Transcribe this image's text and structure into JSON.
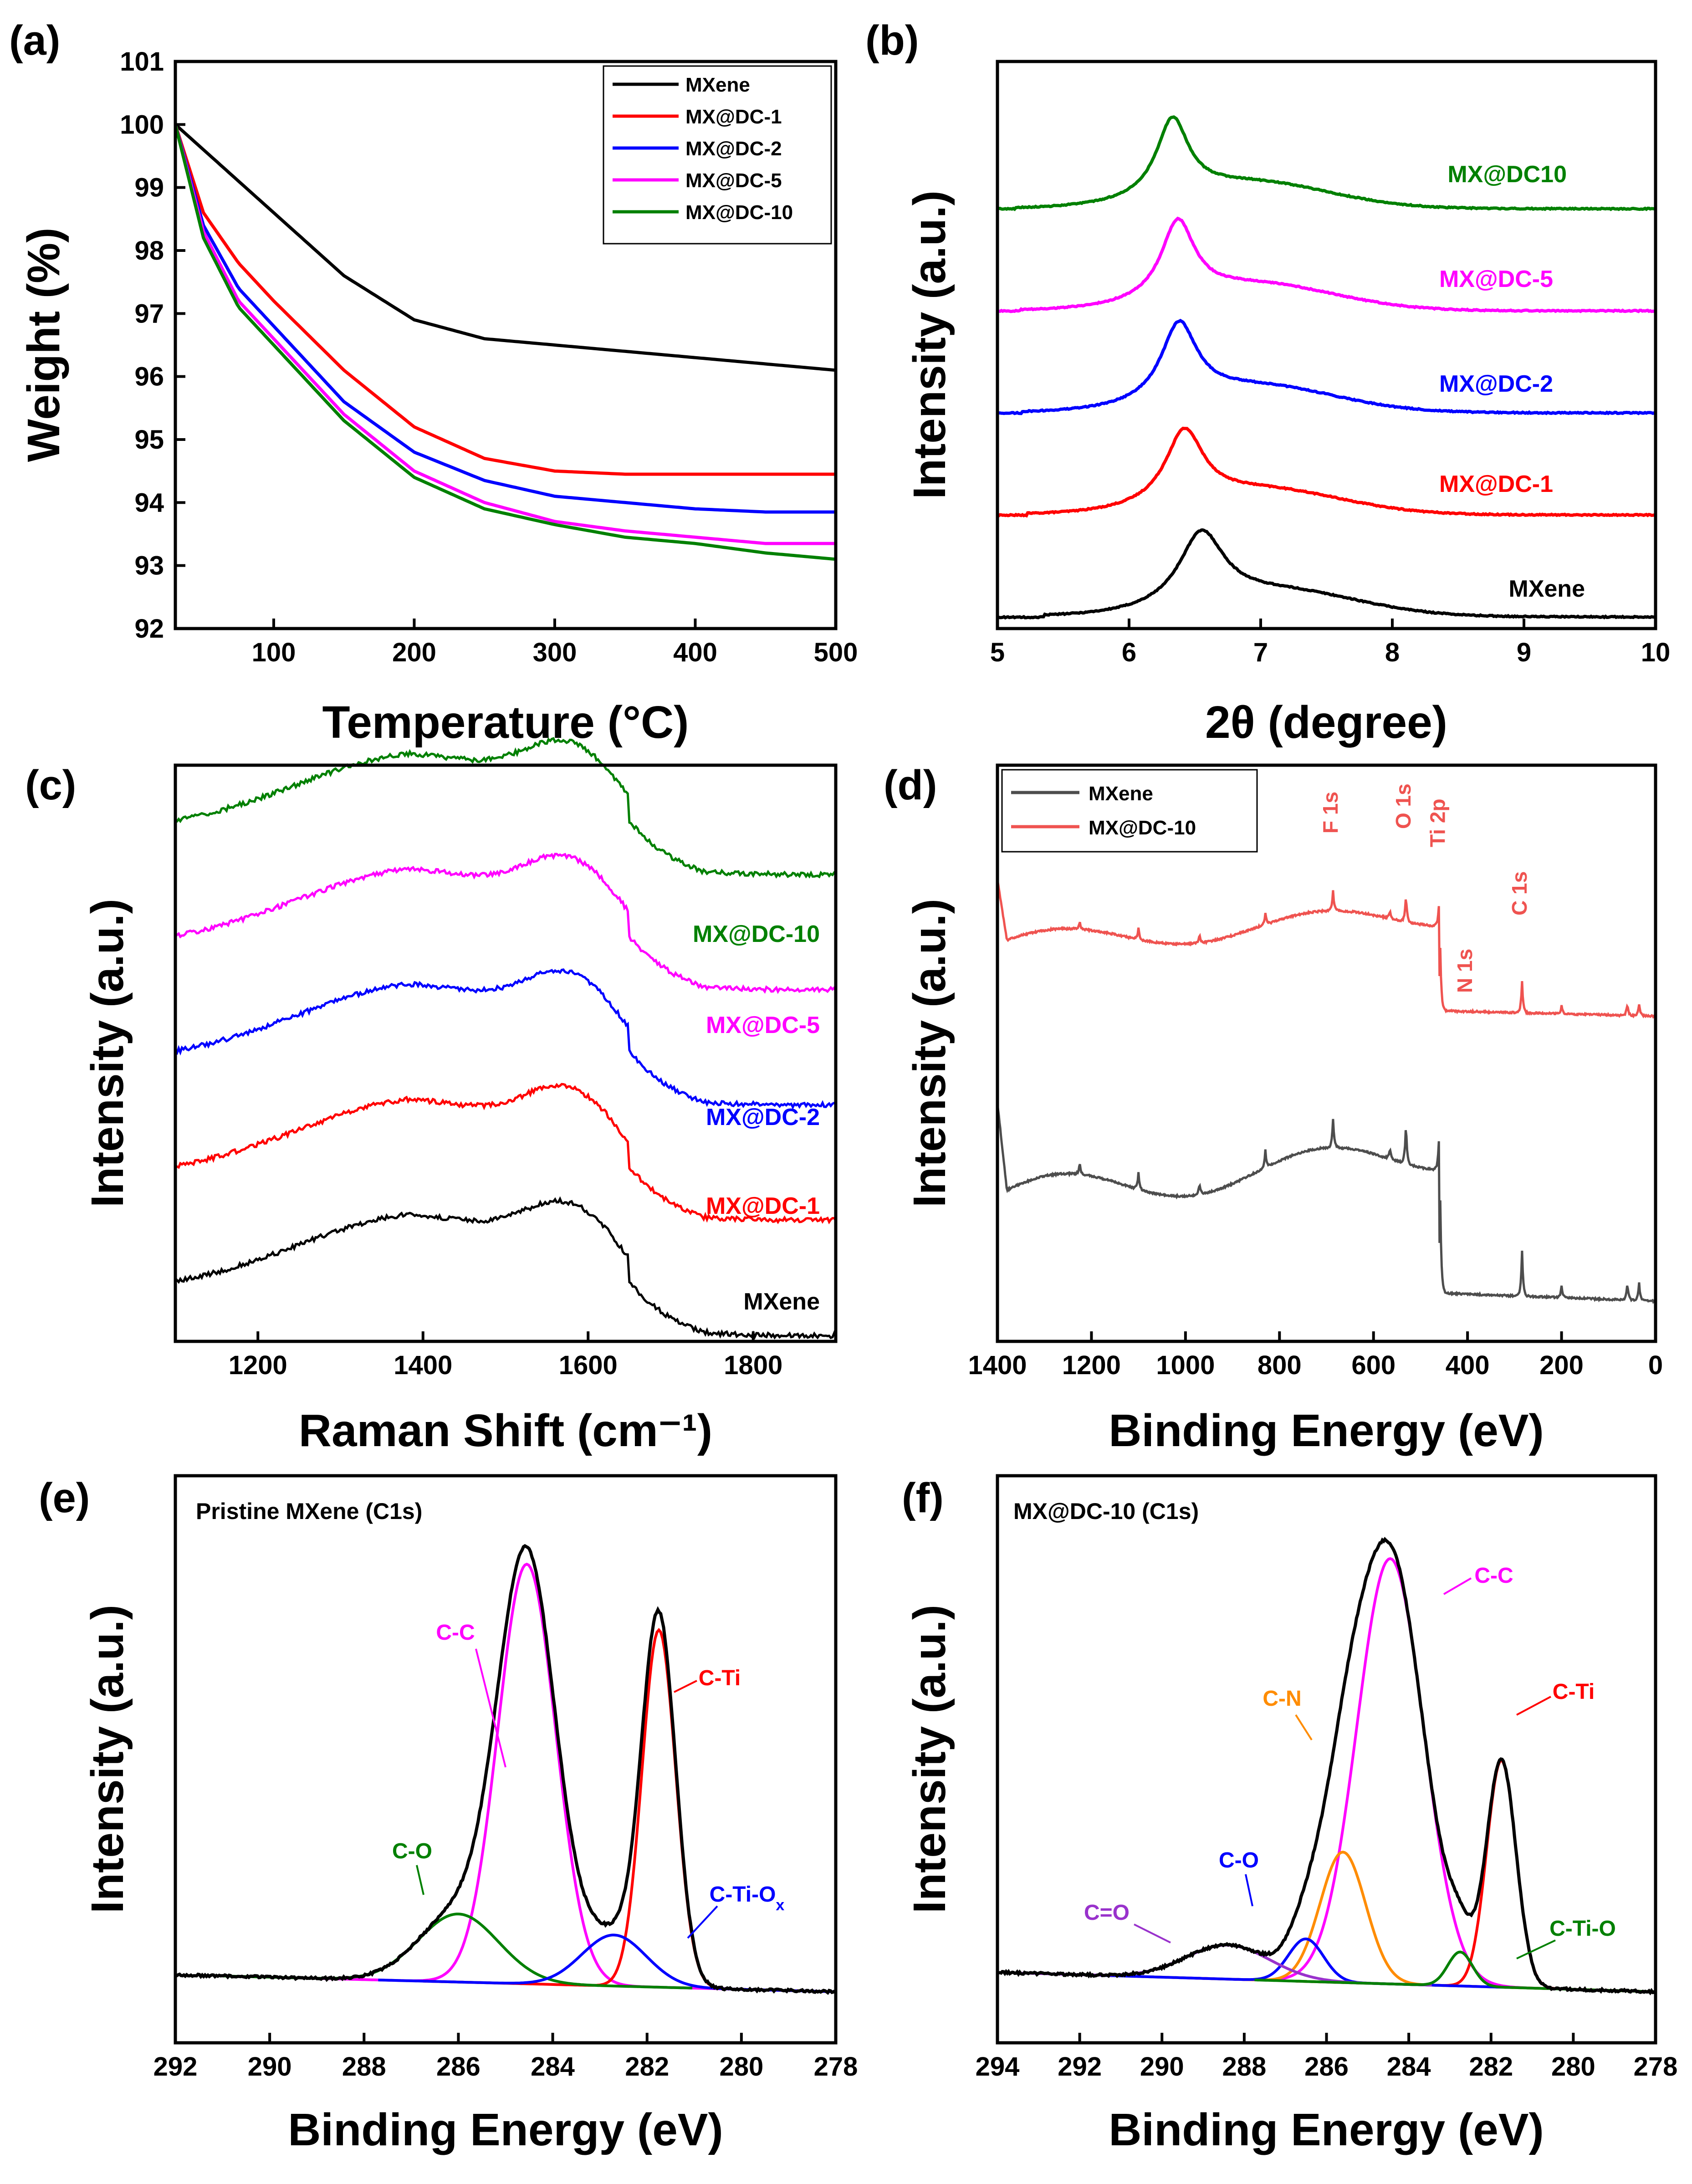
{
  "chart_data": [
    {
      "panel": "(a)",
      "type": "line",
      "xlabel": "Temperature (°C)",
      "ylabel": "Weight (%)",
      "xlim": [
        30,
        500
      ],
      "ylim": [
        92,
        101
      ],
      "xticks": [
        100,
        200,
        300,
        400,
        500
      ],
      "yticks": [
        92,
        93,
        94,
        95,
        96,
        97,
        98,
        99,
        100,
        101
      ],
      "legend_position": "top-right",
      "series": [
        {
          "name": "MXene",
          "color": "#000000",
          "x": [
            30,
            60,
            100,
            150,
            200,
            250,
            300,
            350,
            400,
            450,
            500
          ],
          "y": [
            100,
            99.4,
            98.6,
            97.6,
            96.9,
            96.6,
            96.5,
            96.4,
            96.3,
            96.2,
            96.1
          ]
        },
        {
          "name": "MX@DC-1",
          "color": "#ff0000",
          "x": [
            30,
            50,
            75,
            100,
            150,
            200,
            250,
            300,
            350,
            400,
            450,
            500
          ],
          "y": [
            100,
            98.6,
            97.8,
            97.2,
            96.1,
            95.2,
            94.7,
            94.5,
            94.45,
            94.45,
            94.45,
            94.45
          ]
        },
        {
          "name": "MX@DC-2",
          "color": "#0000ff",
          "x": [
            30,
            50,
            75,
            100,
            150,
            200,
            250,
            300,
            350,
            400,
            450,
            500
          ],
          "y": [
            100,
            98.4,
            97.4,
            96.8,
            95.6,
            94.8,
            94.35,
            94.1,
            94.0,
            93.9,
            93.85,
            93.85
          ]
        },
        {
          "name": "MX@DC-5",
          "color": "#ff00ff",
          "x": [
            30,
            50,
            75,
            100,
            150,
            200,
            250,
            300,
            350,
            400,
            450,
            500
          ],
          "y": [
            100,
            98.3,
            97.2,
            96.6,
            95.4,
            94.5,
            94.0,
            93.7,
            93.55,
            93.45,
            93.35,
            93.35
          ]
        },
        {
          "name": "MX@DC-10",
          "color": "#008000",
          "x": [
            30,
            50,
            75,
            100,
            150,
            200,
            250,
            300,
            350,
            400,
            450,
            500
          ],
          "y": [
            100,
            98.2,
            97.1,
            96.5,
            95.3,
            94.4,
            93.9,
            93.65,
            93.45,
            93.35,
            93.2,
            93.1
          ]
        }
      ]
    },
    {
      "panel": "(b)",
      "type": "line",
      "xlabel": "2θ (degree)",
      "ylabel": "Intensity (a.u.)",
      "xlim": [
        5,
        10
      ],
      "xticks": [
        5,
        6,
        7,
        8,
        9,
        10
      ],
      "series": [
        {
          "name": "MXene",
          "color": "#000000",
          "baseline": 0.02,
          "peak_x": 6.55,
          "height": 0.17,
          "width": 0.38
        },
        {
          "name": "MX@DC-1",
          "color": "#ff0000",
          "baseline": 0.2,
          "peak_x": 6.42,
          "height": 0.17,
          "width": 0.32
        },
        {
          "name": "MX@DC-2",
          "color": "#0000ff",
          "baseline": 0.38,
          "peak_x": 6.38,
          "height": 0.18,
          "width": 0.3
        },
        {
          "name": "MX@DC-5",
          "color": "#ff00ff",
          "baseline": 0.56,
          "peak_x": 6.37,
          "height": 0.18,
          "width": 0.28
        },
        {
          "name": "MX@DC10",
          "color": "#008000",
          "baseline": 0.74,
          "peak_x": 6.33,
          "height": 0.18,
          "width": 0.27
        }
      ]
    },
    {
      "panel": "(c)",
      "type": "line",
      "xlabel": "Raman Shift (cm⁻¹)",
      "ylabel": "Intensity (a.u.)",
      "xlim": [
        1100,
        1900
      ],
      "xticks": [
        1200,
        1400,
        1600,
        1800
      ],
      "series": [
        {
          "name": "MXene",
          "color": "#000000",
          "offset": 0.0
        },
        {
          "name": "MX@DC-1",
          "color": "#ff0000",
          "offset": 0.2
        },
        {
          "name": "MX@DC-2",
          "color": "#0000ff",
          "offset": 0.4
        },
        {
          "name": "MX@DC-5",
          "color": "#ff00ff",
          "offset": 0.6
        },
        {
          "name": "MX@DC-10",
          "color": "#008000",
          "offset": 0.8
        }
      ]
    },
    {
      "panel": "(d)",
      "type": "line",
      "xlabel": "Binding Energy (eV)",
      "ylabel": "Intensity (a.u.)",
      "xlim": [
        1400,
        0
      ],
      "xticks": [
        1400,
        1200,
        1000,
        800,
        600,
        400,
        200,
        0
      ],
      "legend_position": "top-left",
      "series": [
        {
          "name": "MXene",
          "color": "#4d4d4d"
        },
        {
          "name": "MX@DC-10",
          "color": "#ef5350"
        }
      ],
      "annotations": [
        {
          "label": "F 1s",
          "x": 686
        },
        {
          "label": "O 1s",
          "x": 531
        },
        {
          "label": "Ti 2p",
          "x": 458
        },
        {
          "label": "N 1s",
          "x": 400
        },
        {
          "label": "C 1s",
          "x": 284
        }
      ]
    },
    {
      "panel": "(e)",
      "type": "line",
      "title": "Pristine MXene (C1s)",
      "xlabel": "Binding Energy (eV)",
      "ylabel": "Intensity (a.u.)",
      "xlim": [
        292,
        278
      ],
      "xticks": [
        292,
        290,
        288,
        286,
        284,
        282,
        280,
        278
      ],
      "components": [
        {
          "name": "C-C",
          "color": "#ff00ff",
          "center": 284.55,
          "height": 0.74,
          "width": 0.72
        },
        {
          "name": "C-Ti",
          "color": "#ff0000",
          "center": 281.75,
          "height": 0.63,
          "width": 0.42
        },
        {
          "name": "C-O",
          "color": "#008000",
          "center": 286.0,
          "height": 0.12,
          "width": 1.0
        },
        {
          "name": "C-Ti-O",
          "sub": "x",
          "color": "#0000ff",
          "center": 282.7,
          "height": 0.09,
          "width": 0.8
        }
      ]
    },
    {
      "panel": "(f)",
      "type": "line",
      "title": "MX@DC-10 (C1s)",
      "xlabel": "Binding Energy (eV)",
      "ylabel": "Intensity (a.u.)",
      "xlim": [
        294,
        278
      ],
      "xticks": [
        294,
        292,
        290,
        288,
        286,
        284,
        282,
        280,
        278
      ],
      "components": [
        {
          "name": "C-C",
          "color": "#ff00ff",
          "center": 284.45,
          "height": 0.75,
          "width": 0.95
        },
        {
          "name": "C-Ti",
          "color": "#ff0000",
          "center": 281.75,
          "height": 0.4,
          "width": 0.42
        },
        {
          "name": "C-N",
          "color": "#ff8c00",
          "center": 285.6,
          "height": 0.23,
          "width": 0.65
        },
        {
          "name": "C-O",
          "color": "#0000ff",
          "center": 286.5,
          "height": 0.075,
          "width": 0.5
        },
        {
          "name": "C=O",
          "color": "#9932cc",
          "center": 288.4,
          "height": 0.06,
          "width": 1.2
        },
        {
          "name": "C-Ti-O",
          "color": "#008000",
          "center": 282.75,
          "height": 0.06,
          "width": 0.35
        }
      ]
    }
  ]
}
